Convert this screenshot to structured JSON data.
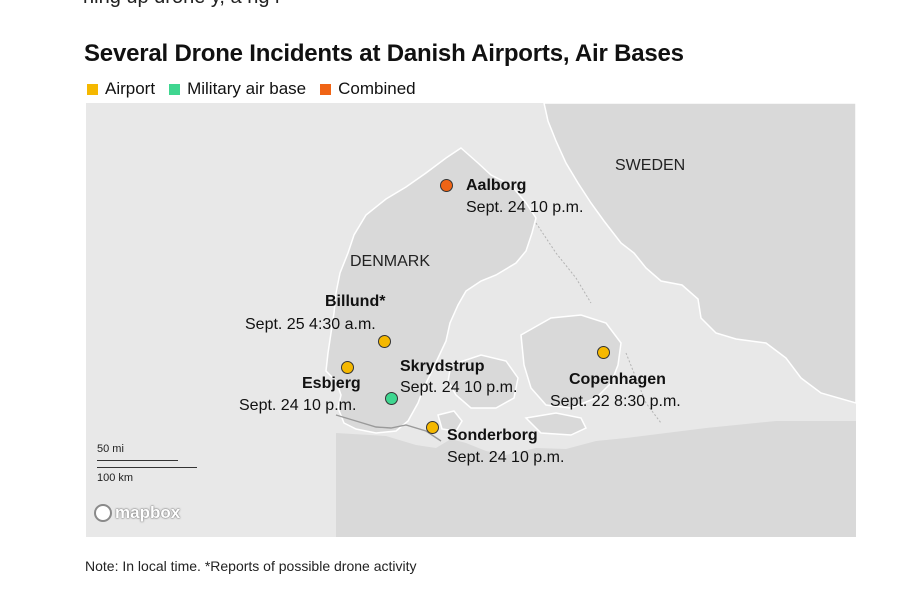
{
  "title": "Several Drone Incidents at Danish Airports, Air Bases",
  "top_fragment": "ning up drone       y, a        ng i",
  "legend": [
    {
      "label": "Airport",
      "color": "#f5b800"
    },
    {
      "label": "Military air base",
      "color": "#3fd690"
    },
    {
      "label": "Combined",
      "color": "#f06415"
    }
  ],
  "map": {
    "country_labels": {
      "sweden": "SWEDEN",
      "denmark": "DENMARK"
    },
    "locations": {
      "aalborg": {
        "name": "Aalborg",
        "time": "Sept. 24 10 p.m.",
        "type": "Combined"
      },
      "billund": {
        "name": "Billund*",
        "time": "Sept. 25 4:30 a.m.",
        "type": "Airport"
      },
      "esbjerg": {
        "name": "Esbjerg",
        "time": "Sept. 24 10 p.m.",
        "type": "Airport"
      },
      "skrydstrup": {
        "name": "Skrydstrup",
        "time": "Sept. 24 10 p.m.",
        "type": "Military air base"
      },
      "sonderborg": {
        "name": "Sonderborg",
        "time": "Sept. 24 10 p.m.",
        "type": "Airport"
      },
      "copenhagen": {
        "name": "Copenhagen",
        "time": "Sept. 22 8:30 p.m.",
        "type": "Airport"
      }
    },
    "scale": {
      "miles": "50 mi",
      "km": "100 km"
    },
    "attribution": "mapbox"
  },
  "note": "Note: In local time. *Reports of possible drone activity"
}
